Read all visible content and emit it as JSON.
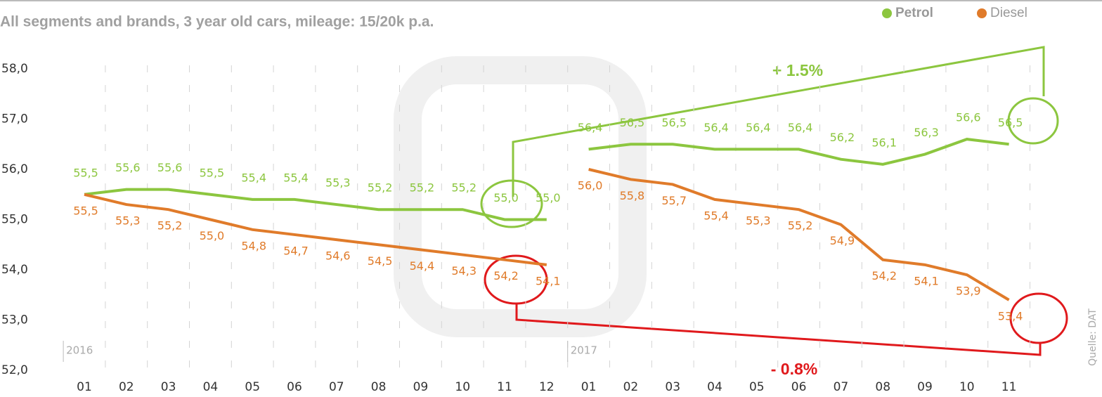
{
  "chart_data": {
    "type": "line",
    "subtitle": "All segments and brands, 3 year old cars, mileage: 15/20k p.a.",
    "source": "Quelle: DAT",
    "x_groups": [
      {
        "label": "2016",
        "categories": [
          "01",
          "02",
          "03",
          "04",
          "05",
          "06",
          "07",
          "08",
          "09",
          "10",
          "11",
          "12"
        ]
      },
      {
        "label": "2017",
        "categories": [
          "01",
          "02",
          "03",
          "04",
          "05",
          "06",
          "07",
          "08",
          "09",
          "10",
          "11"
        ]
      }
    ],
    "series": [
      {
        "name": "Petrol",
        "color": "#8cc63f",
        "values": [
          [
            55.5,
            55.6,
            55.6,
            55.5,
            55.4,
            55.4,
            55.3,
            55.2,
            55.2,
            55.2,
            55.0,
            55.0
          ],
          [
            56.4,
            56.5,
            56.5,
            56.4,
            56.4,
            56.4,
            56.2,
            56.1,
            56.3,
            56.6,
            56.5
          ]
        ],
        "value_labels": [
          [
            "55,5",
            "55,6",
            "55,6",
            "55,5",
            "55,4",
            "55,4",
            "55,3",
            "55,2",
            "55,2",
            "55,2",
            "55,0",
            "55,0"
          ],
          [
            "56,4",
            "56,5",
            "56,5",
            "56,4",
            "56,4",
            "56,4",
            "56,2",
            "56,1",
            "56,3",
            "56,6",
            "56,5"
          ]
        ]
      },
      {
        "name": "Diesel",
        "color": "#e07b2a",
        "values": [
          [
            55.5,
            55.3,
            55.2,
            55.0,
            54.8,
            54.7,
            54.6,
            54.5,
            54.4,
            54.3,
            54.2,
            54.1
          ],
          [
            56.0,
            55.8,
            55.7,
            55.4,
            55.3,
            55.2,
            54.9,
            54.2,
            54.1,
            53.9,
            53.4
          ]
        ],
        "value_labels": [
          [
            "55,5",
            "55,3",
            "55,2",
            "55,0",
            "54,8",
            "54,7",
            "54,6",
            "54,5",
            "54,4",
            "54,3",
            "54,2",
            "54,1"
          ],
          [
            "56,0",
            "55,8",
            "55,7",
            "55,4",
            "55,3",
            "55,2",
            "54,9",
            "54,2",
            "54,1",
            "53,9",
            "53,4"
          ]
        ]
      }
    ],
    "ylim": [
      52,
      58
    ],
    "yticks": [
      {
        "value": 52,
        "label": "52,0"
      },
      {
        "value": 53,
        "label": "53,0"
      },
      {
        "value": 54,
        "label": "54,0"
      },
      {
        "value": 55,
        "label": "55,0"
      },
      {
        "value": 56,
        "label": "56,0"
      },
      {
        "value": 57,
        "label": "57,0"
      },
      {
        "value": 58,
        "label": "58,0"
      }
    ],
    "annotations": [
      "+ 1.5%",
      "- 0.8%"
    ]
  }
}
